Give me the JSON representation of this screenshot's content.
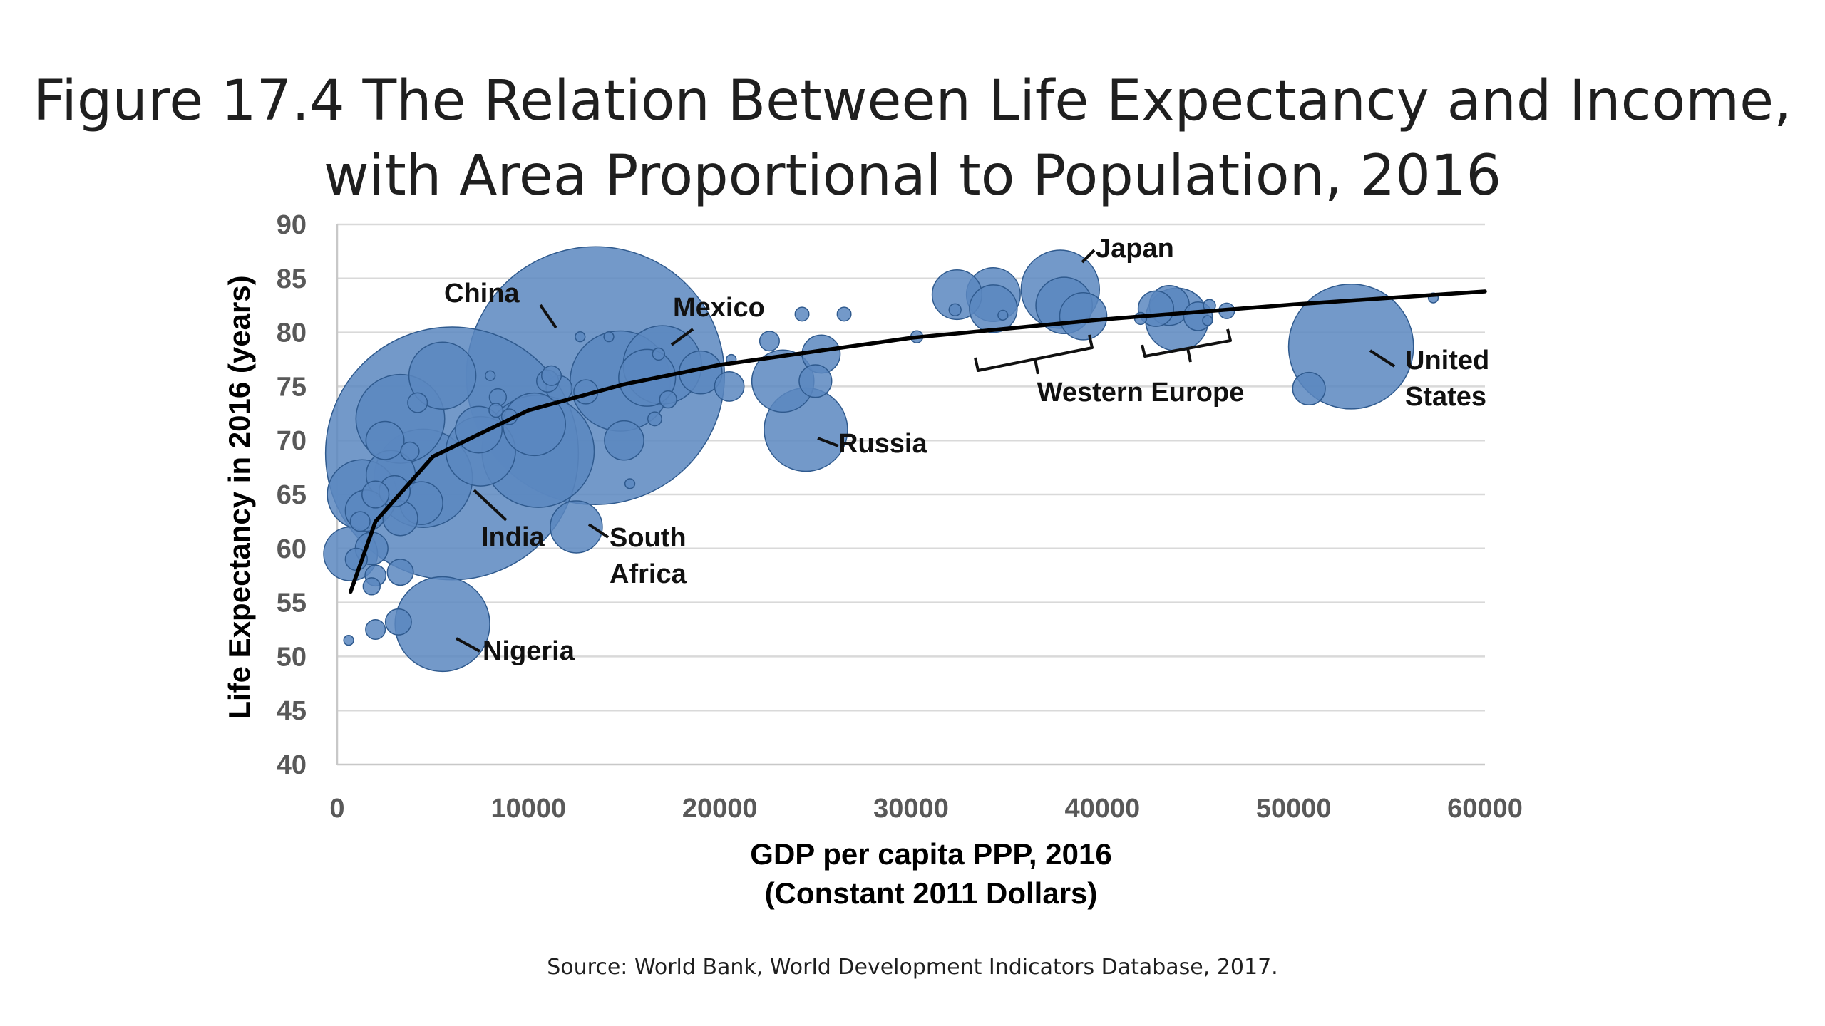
{
  "slide": {
    "title_line1": "Figure 17.4 The Relation Between Life Expectancy and Income,",
    "title_line2": "with Area Proportional to Population, 2016",
    "source": "Source: World Bank, World Development Indicators Database, 2017."
  },
  "chart_data": {
    "type": "scatter",
    "subtype": "bubble",
    "xlabel_line1": "GDP per capita PPP, 2016",
    "xlabel_line2": "(Constant 2011 Dollars)",
    "ylabel": "Life Expectancy in 2016 (years)",
    "xlim": [
      0,
      60000
    ],
    "ylim": [
      40,
      90
    ],
    "xticks": [
      0,
      10000,
      20000,
      30000,
      40000,
      50000,
      60000
    ],
    "yticks": [
      40,
      45,
      50,
      55,
      60,
      65,
      70,
      75,
      80,
      85,
      90
    ],
    "grid": "horizontal",
    "bubble_color": "#5b87c0",
    "bubble_edge_color": "#2f5a8e",
    "trend_color": "#000000",
    "trendline": {
      "type": "logarithmic",
      "points": [
        [
          700,
          56
        ],
        [
          2000,
          62.5
        ],
        [
          5000,
          68.5
        ],
        [
          10000,
          72.8
        ],
        [
          15000,
          75.2
        ],
        [
          20000,
          77
        ],
        [
          30000,
          79.5
        ],
        [
          40000,
          81.2
        ],
        [
          50000,
          82.6
        ],
        [
          60000,
          83.8
        ]
      ]
    },
    "points": [
      {
        "x": 13500,
        "y": 76,
        "size": 1379,
        "label": "China"
      },
      {
        "x": 6000,
        "y": 68.8,
        "size": 1324,
        "label": "India"
      },
      {
        "x": 53000,
        "y": 78.7,
        "size": 323,
        "label": "United States"
      },
      {
        "x": 10500,
        "y": 69,
        "size": 261
      },
      {
        "x": 5500,
        "y": 53,
        "size": 186,
        "label": "Nigeria"
      },
      {
        "x": 14800,
        "y": 75.5,
        "size": 208
      },
      {
        "x": 3300,
        "y": 72,
        "size": 163
      },
      {
        "x": 4500,
        "y": 66.5,
        "size": 200
      },
      {
        "x": 24500,
        "y": 71,
        "size": 144,
        "label": "Russia"
      },
      {
        "x": 17000,
        "y": 77,
        "size": 127,
        "label": "Mexico"
      },
      {
        "x": 37800,
        "y": 84,
        "size": 127,
        "label": "Japan"
      },
      {
        "x": 12500,
        "y": 62,
        "size": 56,
        "label": "South Africa"
      },
      {
        "x": 1300,
        "y": 65,
        "size": 100
      },
      {
        "x": 7500,
        "y": 69,
        "size": 100
      },
      {
        "x": 10300,
        "y": 71.5,
        "size": 81
      },
      {
        "x": 5500,
        "y": 76,
        "size": 93
      },
      {
        "x": 23300,
        "y": 75.5,
        "size": 80
      },
      {
        "x": 16200,
        "y": 75.8,
        "size": 67
      },
      {
        "x": 43900,
        "y": 81.2,
        "size": 82
      },
      {
        "x": 38000,
        "y": 82.5,
        "size": 66
      },
      {
        "x": 34300,
        "y": 83.5,
        "size": 60
      },
      {
        "x": 34300,
        "y": 82.2,
        "size": 47
      },
      {
        "x": 39000,
        "y": 81.5,
        "size": 46
      },
      {
        "x": 32400,
        "y": 83.5,
        "size": 51
      },
      {
        "x": 43500,
        "y": 82.5,
        "size": 33
      },
      {
        "x": 42800,
        "y": 82.2,
        "size": 26
      },
      {
        "x": 45000,
        "y": 81.5,
        "size": 17
      },
      {
        "x": 700,
        "y": 59.5,
        "size": 60
      },
      {
        "x": 2800,
        "y": 66.8,
        "size": 50
      },
      {
        "x": 4400,
        "y": 64.2,
        "size": 38
      },
      {
        "x": 7400,
        "y": 71,
        "size": 45
      },
      {
        "x": 15000,
        "y": 70,
        "size": 32
      },
      {
        "x": 19000,
        "y": 76.3,
        "size": 38
      },
      {
        "x": 25300,
        "y": 78,
        "size": 30
      },
      {
        "x": 25000,
        "y": 75.5,
        "size": 22
      },
      {
        "x": 20500,
        "y": 75,
        "size": 18
      },
      {
        "x": 50800,
        "y": 74.8,
        "size": 22
      },
      {
        "x": 1500,
        "y": 63.5,
        "size": 35
      },
      {
        "x": 2500,
        "y": 70,
        "size": 30
      },
      {
        "x": 3300,
        "y": 62.8,
        "size": 25
      },
      {
        "x": 1800,
        "y": 60,
        "size": 22
      },
      {
        "x": 3300,
        "y": 57.8,
        "size": 14
      },
      {
        "x": 3200,
        "y": 53.2,
        "size": 14
      },
      {
        "x": 2000,
        "y": 52.5,
        "size": 8
      },
      {
        "x": 1000,
        "y": 59,
        "size": 10
      },
      {
        "x": 2000,
        "y": 57.5,
        "size": 9
      },
      {
        "x": 1800,
        "y": 56.5,
        "size": 6
      },
      {
        "x": 1200,
        "y": 62.5,
        "size": 8
      },
      {
        "x": 3000,
        "y": 65.3,
        "size": 20
      },
      {
        "x": 2000,
        "y": 65,
        "size": 15
      },
      {
        "x": 4200,
        "y": 73.5,
        "size": 8
      },
      {
        "x": 3800,
        "y": 69,
        "size": 7
      },
      {
        "x": 8400,
        "y": 74,
        "size": 6
      },
      {
        "x": 11000,
        "y": 75.5,
        "size": 10
      },
      {
        "x": 11600,
        "y": 74.8,
        "size": 14
      },
      {
        "x": 11200,
        "y": 76,
        "size": 8
      },
      {
        "x": 8300,
        "y": 72.8,
        "size": 4
      },
      {
        "x": 8000,
        "y": 76,
        "size": 2
      },
      {
        "x": 13000,
        "y": 74.5,
        "size": 12
      },
      {
        "x": 17300,
        "y": 73.8,
        "size": 6
      },
      {
        "x": 16600,
        "y": 72,
        "size": 4
      },
      {
        "x": 15300,
        "y": 66,
        "size": 2
      },
      {
        "x": 22600,
        "y": 79.2,
        "size": 8
      },
      {
        "x": 24300,
        "y": 81.7,
        "size": 4
      },
      {
        "x": 26500,
        "y": 81.7,
        "size": 4
      },
      {
        "x": 30300,
        "y": 79.6,
        "size": 3
      },
      {
        "x": 32300,
        "y": 82.1,
        "size": 3
      },
      {
        "x": 34800,
        "y": 81.6,
        "size": 2
      },
      {
        "x": 42000,
        "y": 81.3,
        "size": 3
      },
      {
        "x": 45600,
        "y": 82.5,
        "size": 3
      },
      {
        "x": 46500,
        "y": 82,
        "size": 5
      },
      {
        "x": 45500,
        "y": 81.1,
        "size": 2
      },
      {
        "x": 20600,
        "y": 77.5,
        "size": 2
      },
      {
        "x": 57300,
        "y": 83.2,
        "size": 2
      },
      {
        "x": 600,
        "y": 51.5,
        "size": 2
      },
      {
        "x": 9000,
        "y": 72.2,
        "size": 5
      },
      {
        "x": 16800,
        "y": 78,
        "size": 3
      },
      {
        "x": 14200,
        "y": 79.6,
        "size": 2
      },
      {
        "x": 12700,
        "y": 79.6,
        "size": 2
      }
    ],
    "annotations": [
      {
        "text": "China"
      },
      {
        "text": "India"
      },
      {
        "text": "Mexico"
      },
      {
        "text": "Japan"
      },
      {
        "text": "Russia"
      },
      {
        "text": "South",
        "text2": "Africa"
      },
      {
        "text": "Nigeria"
      },
      {
        "text": "United",
        "text2": "States"
      },
      {
        "text": "Western Europe"
      }
    ]
  }
}
